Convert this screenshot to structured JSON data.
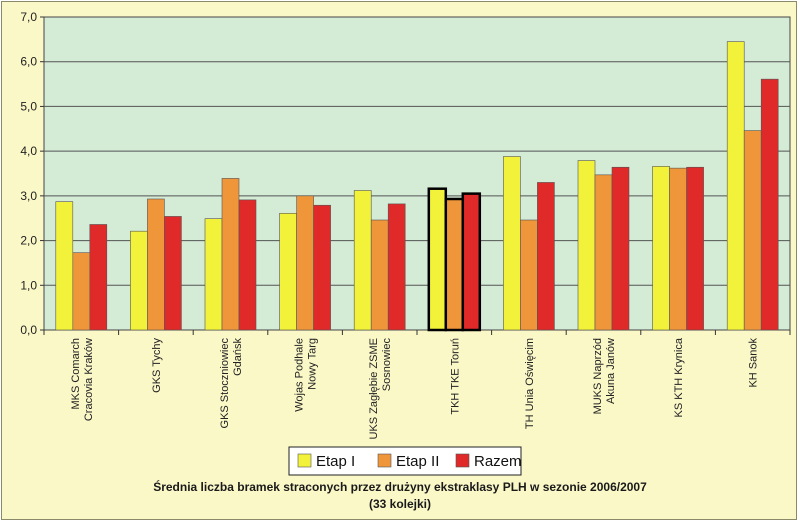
{
  "chart_data": {
    "type": "bar",
    "title": "Średnia liczba bramek straconych przez drużyny ekstraklasy PLH w sezonie 2006/2007",
    "subtitle": "(33 kolejki)",
    "xlabel": "",
    "ylabel": "",
    "ylim": [
      0,
      7
    ],
    "yticks": [
      "0,0",
      "1,0",
      "2,0",
      "3,0",
      "4,0",
      "5,0",
      "6,0",
      "7,0"
    ],
    "grid": true,
    "legend_position": "bottom-center",
    "highlighted_category": "TKH TKE Toruń",
    "categories": [
      [
        "MKS Comarch",
        "Cracovia Kraków"
      ],
      [
        "GKS Tychy"
      ],
      [
        "GKS Stoczniowiec",
        "Gdańsk"
      ],
      [
        "Wojas Podhale",
        "Nowy Targ"
      ],
      [
        "UKS Zagłębie ZSME",
        "Sosnowiec"
      ],
      [
        "TKH TKE Toruń"
      ],
      [
        "TH Unia Oświęcim"
      ],
      [
        "MUKS Naprzód",
        "Akuna Janów"
      ],
      [
        "KS KTH Krynica"
      ],
      [
        "KH Sanok"
      ]
    ],
    "series": [
      {
        "name": "Etap I",
        "color": "#f2f23a",
        "values": [
          2.87,
          2.21,
          2.49,
          2.61,
          3.12,
          3.16,
          3.88,
          3.79,
          3.66,
          6.45
        ]
      },
      {
        "name": "Etap II",
        "color": "#f0963a",
        "values": [
          1.73,
          2.93,
          3.39,
          3.0,
          2.46,
          2.93,
          2.46,
          3.47,
          3.62,
          4.46
        ]
      },
      {
        "name": "Razem",
        "color": "#e02a2a",
        "values": [
          2.36,
          2.54,
          2.91,
          2.79,
          2.82,
          3.05,
          3.3,
          3.64,
          3.64,
          5.61
        ]
      }
    ]
  }
}
